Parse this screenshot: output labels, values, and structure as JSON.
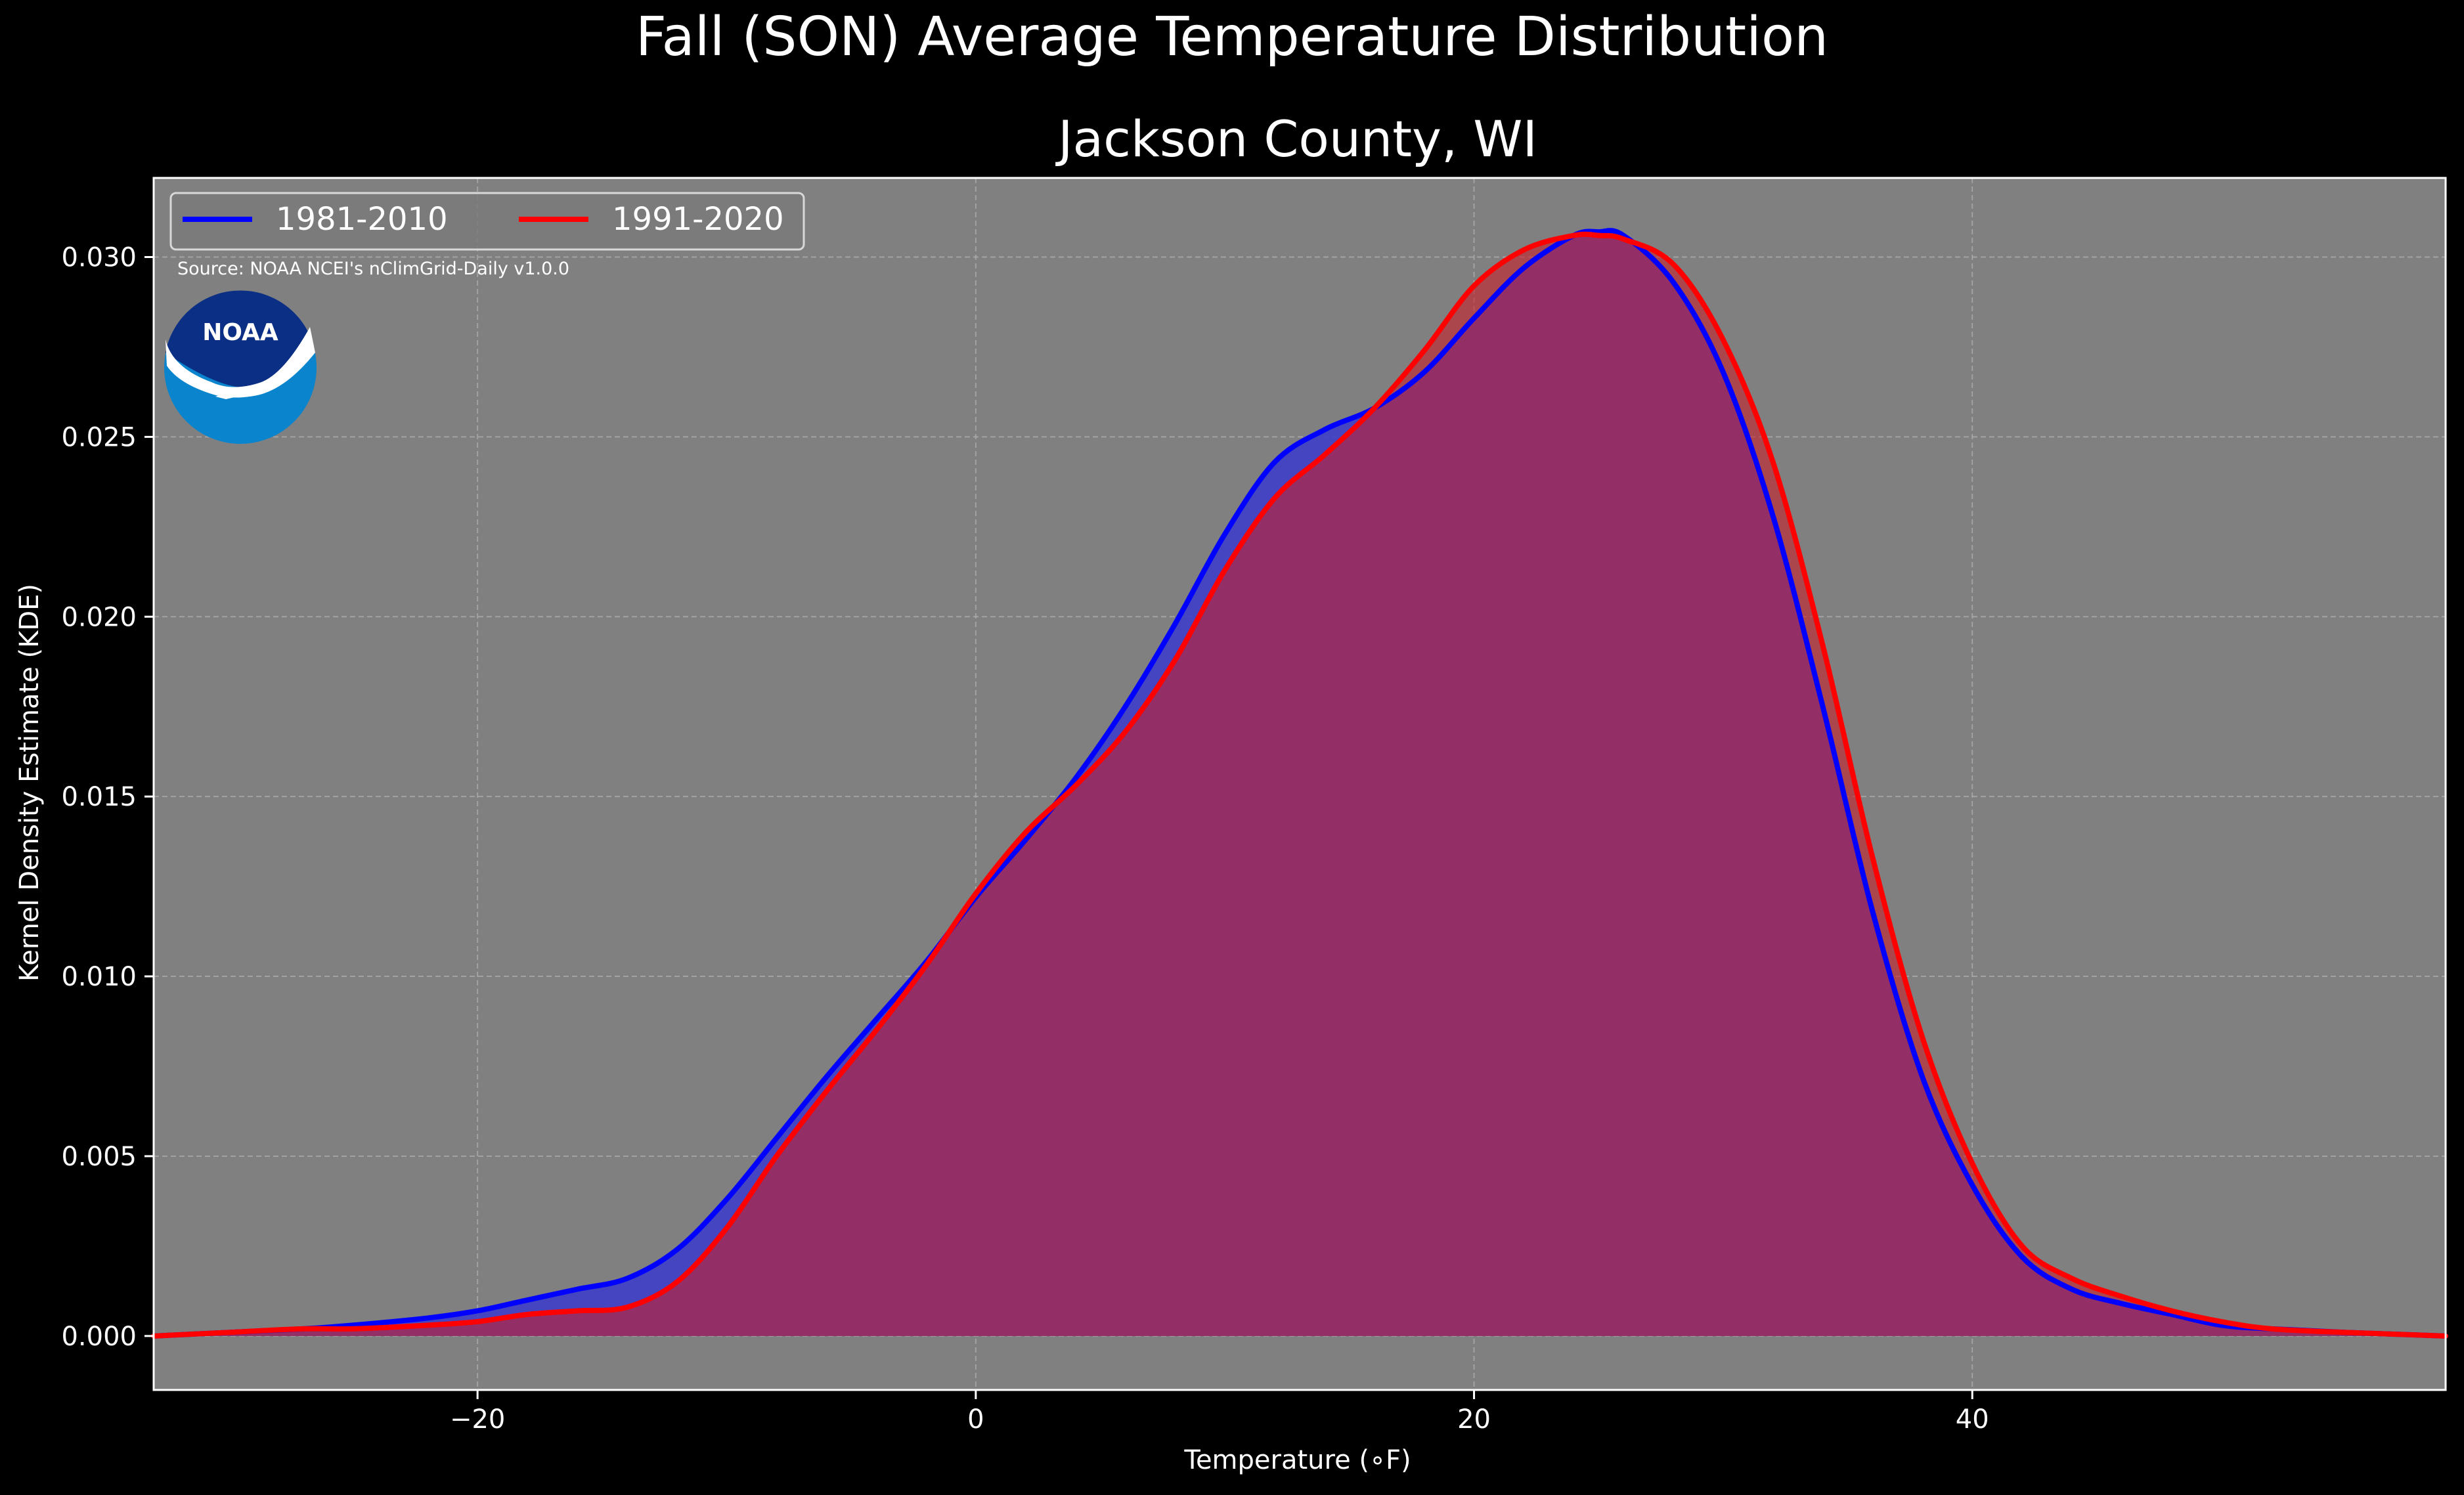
{
  "figure": {
    "suptitle": "Fall (SON) Average Temperature Distribution",
    "background": "#000000"
  },
  "chart_data": {
    "type": "area",
    "title": "Jackson County, WI",
    "xlabel": "Temperature ($^\\circ$F)",
    "xlabel_display": "Temperature (∘F)",
    "ylabel": "Kernel Density Estimate (KDE)",
    "xlim": [
      -33,
      59
    ],
    "ylim": [
      -0.0015,
      0.0322
    ],
    "xticks": [
      -20,
      0,
      20,
      40
    ],
    "xtick_labels": [
      "−20",
      "0",
      "20",
      "40"
    ],
    "yticks": [
      0.0,
      0.005,
      0.01,
      0.015,
      0.02,
      0.025,
      0.03
    ],
    "ytick_labels": [
      "0.000",
      "0.005",
      "0.010",
      "0.015",
      "0.020",
      "0.025",
      "0.030"
    ],
    "grid": true,
    "legend_position": "top-left",
    "annotation": "Source: NOAA NCEI's nClimGrid-Daily v1.0.0",
    "logo_text": "NOAA",
    "axes_background": "#808080",
    "series": [
      {
        "name": "1981-2010",
        "color": "#0000ff",
        "fill": "#4040c8",
        "x": [
          -33,
          -30,
          -27,
          -25,
          -22,
          -20,
          -18,
          -16,
          -14,
          -12,
          -10,
          -8,
          -6,
          -4,
          -2,
          0,
          2,
          4,
          6,
          8,
          10,
          12,
          14,
          16,
          18,
          20,
          22,
          24,
          25,
          26,
          28,
          30,
          32,
          34,
          36,
          38,
          40,
          42,
          44,
          46,
          48,
          50,
          52,
          55,
          59
        ],
        "y": [
          0.0,
          0.0001,
          0.0002,
          0.0003,
          0.0005,
          0.0007,
          0.001,
          0.0013,
          0.0016,
          0.0024,
          0.0038,
          0.0055,
          0.0072,
          0.0088,
          0.0104,
          0.0122,
          0.0138,
          0.0155,
          0.0175,
          0.0198,
          0.0223,
          0.0243,
          0.0252,
          0.0258,
          0.0268,
          0.0283,
          0.0297,
          0.0306,
          0.0307,
          0.0306,
          0.0293,
          0.0268,
          0.0228,
          0.0175,
          0.0118,
          0.0072,
          0.0042,
          0.0022,
          0.0013,
          0.0009,
          0.0006,
          0.0003,
          0.0002,
          0.0001,
          0.0
        ]
      },
      {
        "name": "1991-2020",
        "color": "#ff0000",
        "fill": "#c8202a",
        "x": [
          -33,
          -30,
          -27,
          -25,
          -22,
          -20,
          -18,
          -16,
          -14,
          -12,
          -10,
          -8,
          -6,
          -4,
          -2,
          0,
          2,
          4,
          6,
          8,
          10,
          12,
          14,
          16,
          18,
          20,
          22,
          24,
          25,
          26,
          28,
          30,
          32,
          34,
          36,
          38,
          40,
          42,
          44,
          46,
          48,
          50,
          52,
          55,
          59
        ],
        "y": [
          0.0,
          0.0001,
          0.0002,
          0.0002,
          0.0003,
          0.0004,
          0.0006,
          0.0007,
          0.0008,
          0.0015,
          0.003,
          0.005,
          0.0068,
          0.0085,
          0.0103,
          0.0123,
          0.014,
          0.0153,
          0.0168,
          0.0188,
          0.0213,
          0.0233,
          0.0245,
          0.0258,
          0.0274,
          0.0292,
          0.0302,
          0.0306,
          0.0306,
          0.0305,
          0.0298,
          0.0277,
          0.0243,
          0.0192,
          0.0133,
          0.0083,
          0.0048,
          0.0025,
          0.0016,
          0.0011,
          0.0007,
          0.0004,
          0.0002,
          0.0001,
          0.0
        ]
      }
    ]
  }
}
